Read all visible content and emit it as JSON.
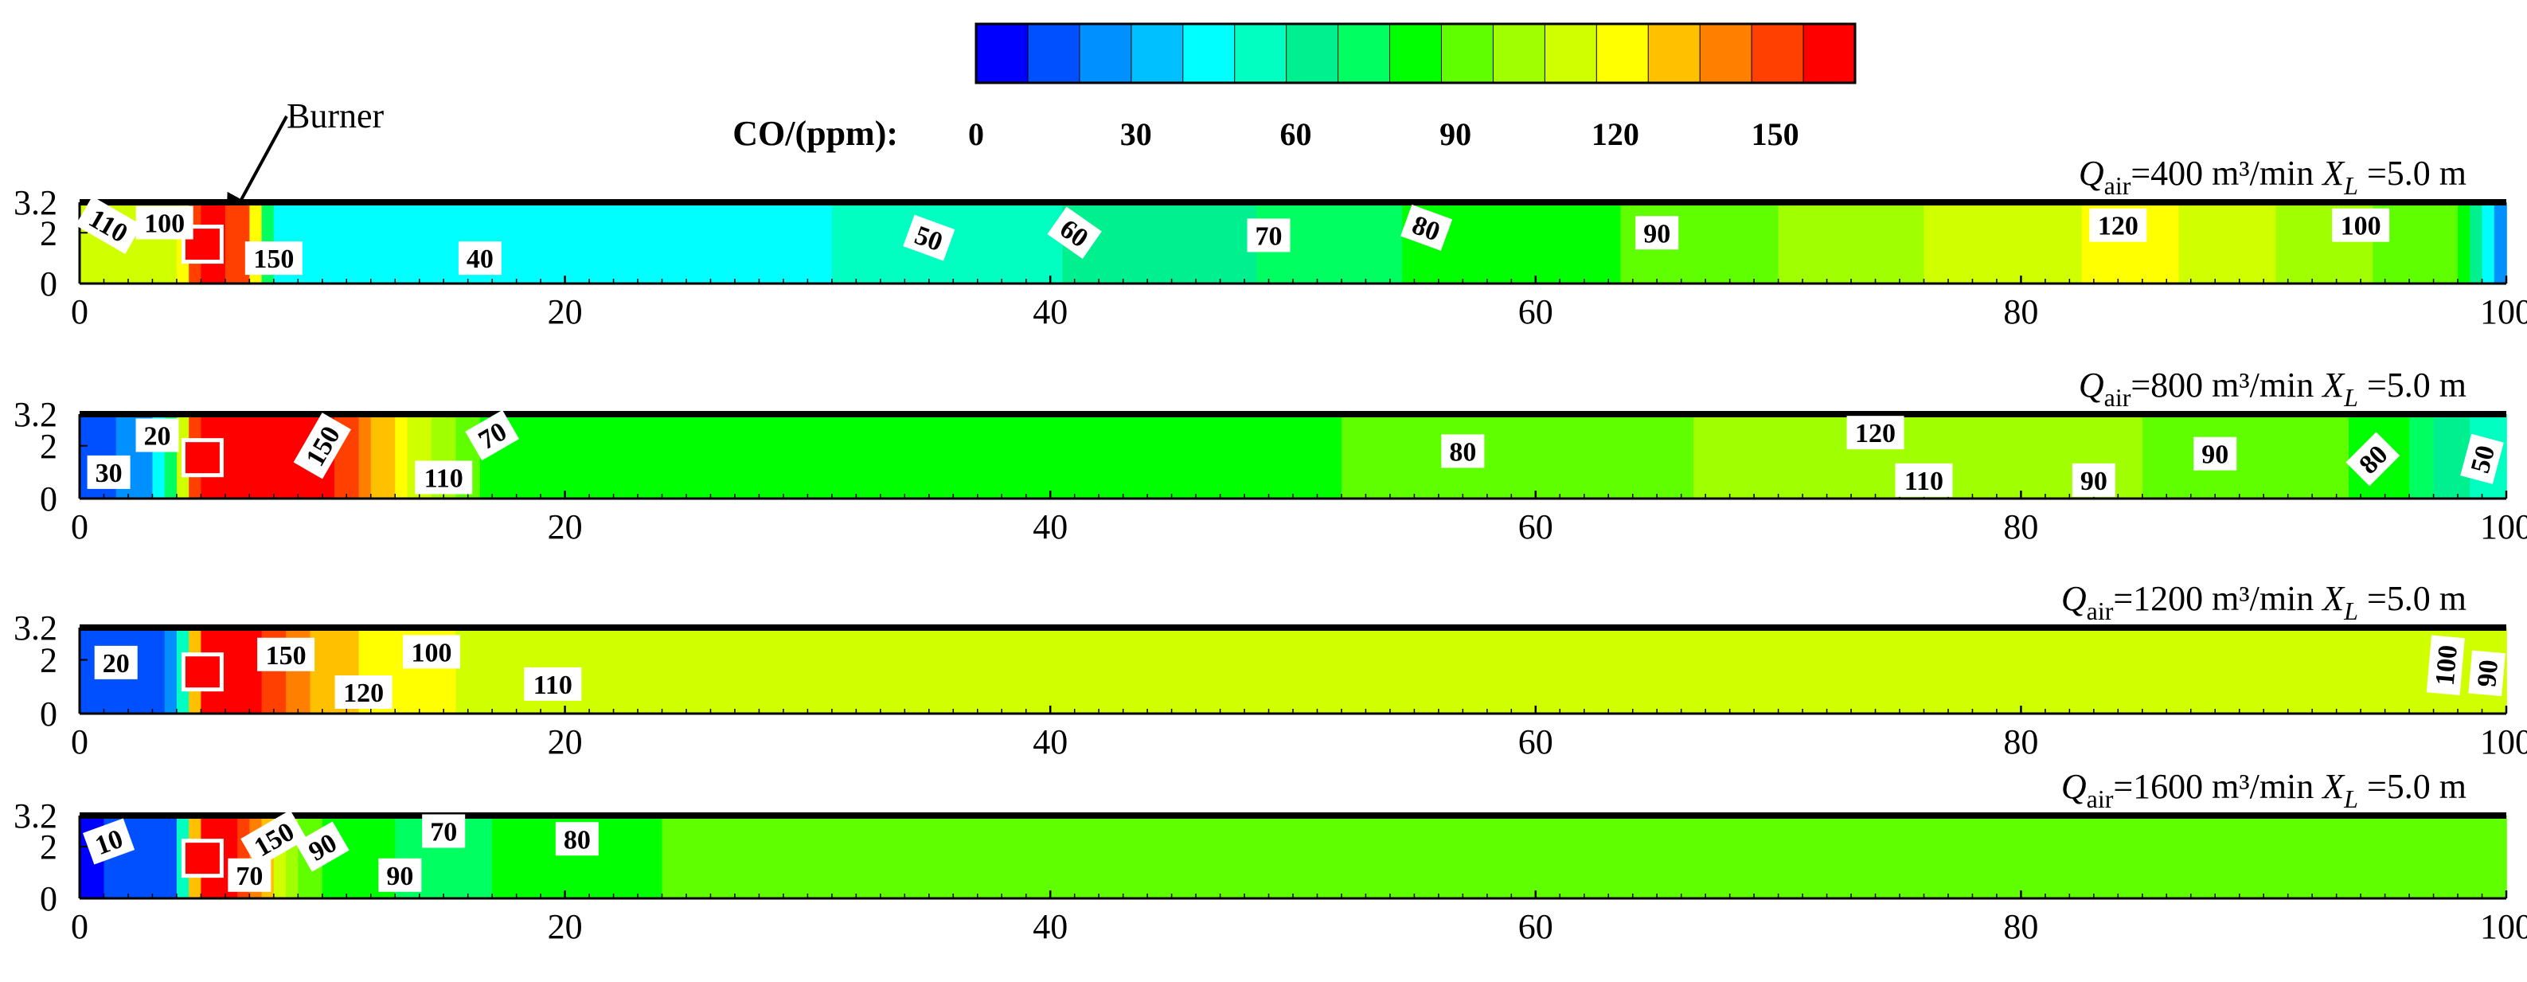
{
  "colorbar": {
    "title": "CO/(ppm):",
    "ticks": [
      0,
      30,
      60,
      90,
      120,
      150
    ],
    "range": [
      0,
      165
    ],
    "colors": [
      "#0000ff",
      "#0050ff",
      "#0090ff",
      "#00c0ff",
      "#00ffff",
      "#00ffc0",
      "#00f090",
      "#00ff60",
      "#00ff00",
      "#60ff00",
      "#a0ff00",
      "#d0ff00",
      "#ffff00",
      "#ffc000",
      "#ff8000",
      "#ff4000",
      "#ff0000"
    ]
  },
  "burner_annotation": "Burner",
  "chart_data": [
    {
      "type": "heatmap",
      "title_text": "=400 m³/min",
      "title_var": "Q",
      "title_sub": "air",
      "xl_var": "X",
      "xl_sub": "L",
      "xl_text": " =5.0 m",
      "x_ticks": [
        0,
        20,
        40,
        60,
        80,
        100
      ],
      "y_ticks": [
        0,
        2,
        3.2
      ],
      "xlim": [
        0,
        100
      ],
      "ylim": [
        0,
        3.2
      ],
      "burner_x": 5.0,
      "profile": [
        {
          "x": 0,
          "v": 115
        },
        {
          "x": 2,
          "v": 108
        },
        {
          "x": 4,
          "v": 112
        },
        {
          "x": 5,
          "v": 160
        },
        {
          "x": 7,
          "v": 150
        },
        {
          "x": 8,
          "v": 45
        },
        {
          "x": 20,
          "v": 40
        },
        {
          "x": 33,
          "v": 50
        },
        {
          "x": 42,
          "v": 60
        },
        {
          "x": 50,
          "v": 70
        },
        {
          "x": 56,
          "v": 80
        },
        {
          "x": 66,
          "v": 90
        },
        {
          "x": 75,
          "v": 105
        },
        {
          "x": 85,
          "v": 120
        },
        {
          "x": 93,
          "v": 100
        },
        {
          "x": 98,
          "v": 90
        },
        {
          "x": 100,
          "v": 10
        }
      ],
      "contour_labels": [
        {
          "text": "110",
          "x": 1.2,
          "y": 2.3,
          "angle": 30
        },
        {
          "text": "100",
          "x": 3.5,
          "y": 2.4,
          "angle": 0
        },
        {
          "text": "150",
          "x": 8.0,
          "y": 1.0,
          "angle": 0
        },
        {
          "text": "40",
          "x": 16.5,
          "y": 1.0,
          "angle": 0
        },
        {
          "text": "50",
          "x": 35.0,
          "y": 1.8,
          "angle": 20
        },
        {
          "text": "60",
          "x": 41.0,
          "y": 2.0,
          "angle": 35
        },
        {
          "text": "70",
          "x": 49.0,
          "y": 1.9,
          "angle": 0
        },
        {
          "text": "80",
          "x": 55.5,
          "y": 2.2,
          "angle": 20
        },
        {
          "text": "90",
          "x": 65.0,
          "y": 2.0,
          "angle": 0
        },
        {
          "text": "120",
          "x": 84.0,
          "y": 2.3,
          "angle": 0
        },
        {
          "text": "100",
          "x": 94.0,
          "y": 2.3,
          "angle": 0
        }
      ]
    },
    {
      "type": "heatmap",
      "title_text": "=800 m³/min",
      "title_var": "Q",
      "title_sub": "air",
      "xl_var": "X",
      "xl_sub": "L",
      "xl_text": " =5.0 m",
      "x_ticks": [
        0,
        20,
        40,
        60,
        80,
        100
      ],
      "y_ticks": [
        0,
        2,
        3.2
      ],
      "xlim": [
        0,
        100
      ],
      "ylim": [
        0,
        3.2
      ],
      "burner_x": 5.0,
      "profile": [
        {
          "x": 0,
          "v": 15
        },
        {
          "x": 3,
          "v": 25
        },
        {
          "x": 5,
          "v": 165
        },
        {
          "x": 9,
          "v": 165
        },
        {
          "x": 11,
          "v": 150
        },
        {
          "x": 14,
          "v": 110
        },
        {
          "x": 17,
          "v": 80
        },
        {
          "x": 22,
          "v": 85
        },
        {
          "x": 60,
          "v": 88
        },
        {
          "x": 72,
          "v": 105
        },
        {
          "x": 82,
          "v": 100
        },
        {
          "x": 90,
          "v": 92
        },
        {
          "x": 95,
          "v": 85
        },
        {
          "x": 98,
          "v": 60
        },
        {
          "x": 100,
          "v": 50
        }
      ],
      "contour_labels": [
        {
          "text": "20",
          "x": 3.2,
          "y": 2.4,
          "angle": 0
        },
        {
          "text": "30",
          "x": 1.2,
          "y": 1.0,
          "angle": 0
        },
        {
          "text": "150",
          "x": 10.0,
          "y": 2.0,
          "angle": -60
        },
        {
          "text": "70",
          "x": 17.0,
          "y": 2.4,
          "angle": -30
        },
        {
          "text": "110",
          "x": 15.0,
          "y": 0.8,
          "angle": 0
        },
        {
          "text": "80",
          "x": 57.0,
          "y": 1.8,
          "angle": 0
        },
        {
          "text": "120",
          "x": 74.0,
          "y": 2.5,
          "angle": 0
        },
        {
          "text": "110",
          "x": 76.0,
          "y": 0.7,
          "angle": 0
        },
        {
          "text": "90",
          "x": 83.0,
          "y": 0.7,
          "angle": 0
        },
        {
          "text": "90",
          "x": 88.0,
          "y": 1.7,
          "angle": 0
        },
        {
          "text": "80",
          "x": 94.5,
          "y": 1.5,
          "angle": -45
        },
        {
          "text": "50",
          "x": 99.0,
          "y": 1.5,
          "angle": -75
        }
      ]
    },
    {
      "type": "heatmap",
      "title_text": "=1200 m³/min",
      "title_var": "Q",
      "title_sub": "air",
      "xl_var": "X",
      "xl_sub": "L",
      "xl_text": " =5.0 m",
      "x_ticks": [
        0,
        20,
        40,
        60,
        80,
        100
      ],
      "y_ticks": [
        0,
        2,
        3.2
      ],
      "xlim": [
        0,
        100
      ],
      "ylim": [
        0,
        3.2
      ],
      "burner_x": 5.0,
      "profile": [
        {
          "x": 0,
          "v": 12
        },
        {
          "x": 4,
          "v": 20
        },
        {
          "x": 5,
          "v": 165
        },
        {
          "x": 7,
          "v": 160
        },
        {
          "x": 10,
          "v": 130
        },
        {
          "x": 14,
          "v": 118
        },
        {
          "x": 20,
          "v": 112
        },
        {
          "x": 23,
          "v": 108
        },
        {
          "x": 100,
          "v": 108
        }
      ],
      "contour_labels": [
        {
          "text": "20",
          "x": 1.5,
          "y": 1.9,
          "angle": 0
        },
        {
          "text": "150",
          "x": 8.5,
          "y": 2.2,
          "angle": 0
        },
        {
          "text": "100",
          "x": 14.5,
          "y": 2.3,
          "angle": 0
        },
        {
          "text": "120",
          "x": 11.7,
          "y": 0.8,
          "angle": 0
        },
        {
          "text": "110",
          "x": 19.5,
          "y": 1.1,
          "angle": 0
        },
        {
          "text": "100",
          "x": 97.5,
          "y": 1.8,
          "angle": -85
        },
        {
          "text": "90",
          "x": 99.2,
          "y": 1.5,
          "angle": -85
        }
      ]
    },
    {
      "type": "heatmap",
      "title_text": "=1600 m³/min",
      "title_var": "Q",
      "title_sub": "air",
      "xl_var": "X",
      "xl_sub": "L",
      "xl_text": " =5.0 m",
      "x_ticks": [
        0,
        20,
        40,
        60,
        80,
        100
      ],
      "y_ticks": [
        0,
        2,
        3.2
      ],
      "xlim": [
        0,
        100
      ],
      "ylim": [
        0,
        3.2
      ],
      "burner_x": 5.0,
      "profile": [
        {
          "x": 0,
          "v": 8
        },
        {
          "x": 4,
          "v": 15
        },
        {
          "x": 5,
          "v": 165
        },
        {
          "x": 7,
          "v": 150
        },
        {
          "x": 9,
          "v": 90
        },
        {
          "x": 14,
          "v": 75
        },
        {
          "x": 22,
          "v": 82
        },
        {
          "x": 24,
          "v": 88
        },
        {
          "x": 100,
          "v": 88
        }
      ],
      "contour_labels": [
        {
          "text": "10",
          "x": 1.2,
          "y": 2.2,
          "angle": -20
        },
        {
          "text": "150",
          "x": 8.0,
          "y": 2.3,
          "angle": -30
        },
        {
          "text": "90",
          "x": 10.0,
          "y": 2.0,
          "angle": -30
        },
        {
          "text": "70",
          "x": 15.0,
          "y": 2.6,
          "angle": 0
        },
        {
          "text": "80",
          "x": 20.5,
          "y": 2.3,
          "angle": 0
        },
        {
          "text": "90",
          "x": 13.2,
          "y": 0.9,
          "angle": 0
        },
        {
          "text": "70",
          "x": 7.0,
          "y": 0.9,
          "angle": 0
        }
      ]
    }
  ]
}
